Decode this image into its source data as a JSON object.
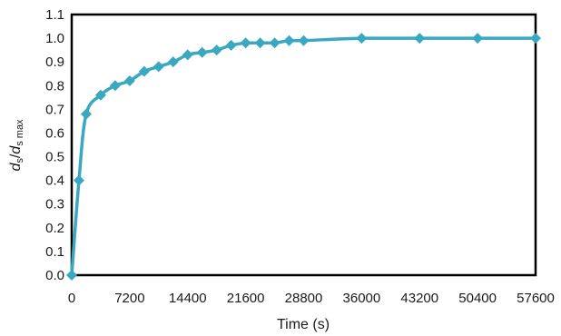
{
  "chart_data": {
    "type": "line",
    "title": "",
    "xlabel": "Time (s)",
    "ylabel": {
      "d1": "d",
      "s1": "s",
      "slash": "/",
      "d2": "d",
      "s2": "s max"
    },
    "xlim": [
      0,
      57600
    ],
    "ylim": [
      0,
      1.1
    ],
    "x_ticks": [
      "0",
      "7200",
      "14400",
      "21600",
      "28800",
      "36000",
      "43200",
      "50400",
      "57600"
    ],
    "x_tick_values": [
      0,
      7200,
      14400,
      21600,
      28800,
      36000,
      43200,
      50400,
      57600
    ],
    "y_ticks": [
      "0.0",
      "0.1",
      "0.2",
      "0.3",
      "0.4",
      "0.5",
      "0.6",
      "0.7",
      "0.8",
      "0.9",
      "1.0",
      "1.1"
    ],
    "y_tick_values": [
      0,
      0.1,
      0.2,
      0.3,
      0.4,
      0.5,
      0.6,
      0.7,
      0.8,
      0.9,
      1.0,
      1.1
    ],
    "grid": false,
    "legend": "none",
    "series": [
      {
        "color": "#3aa8c1",
        "marker": "diamond",
        "x": [
          0,
          900,
          1800,
          3600,
          5400,
          7200,
          9000,
          10800,
          12600,
          14400,
          16200,
          18000,
          19800,
          21600,
          23400,
          25200,
          27000,
          28800,
          36000,
          43200,
          50400,
          57600
        ],
        "y": [
          0,
          0.4,
          0.68,
          0.76,
          0.8,
          0.82,
          0.86,
          0.88,
          0.9,
          0.93,
          0.94,
          0.95,
          0.97,
          0.98,
          0.98,
          0.98,
          0.99,
          0.99,
          1.0,
          1.0,
          1.0,
          1.0
        ]
      }
    ]
  }
}
